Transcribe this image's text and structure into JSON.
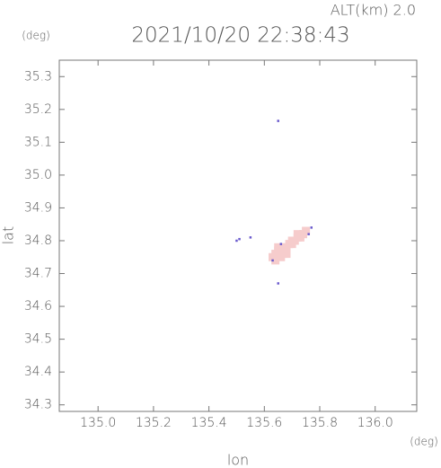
{
  "chart_data": {
    "type": "scatter",
    "title": "2021/10/20 22:38:43",
    "annotation": "ALT(km) 2.0",
    "x_label": "lon",
    "y_label": "lat",
    "x_unit": "(deg)",
    "y_unit": "(deg)",
    "xlim": [
      134.86,
      136.15
    ],
    "ylim": [
      34.28,
      35.35
    ],
    "xticks": [
      {
        "value": 135.0,
        "label": "135.0"
      },
      135.2,
      135.4,
      135.6,
      135.8,
      {
        "value": 136.0,
        "label": "136.0"
      }
    ],
    "yticks": [
      35.3,
      35.2,
      35.1,
      {
        "value": 35.0,
        "label": "35.0"
      },
      34.9,
      34.8,
      34.7,
      34.6,
      34.5,
      34.4,
      34.3
    ],
    "series": [
      {
        "color": "#f6cccc",
        "x": [
          135.63,
          135.64,
          135.65,
          135.66,
          135.67,
          135.68,
          135.69,
          135.7,
          135.71,
          135.72,
          135.73,
          135.74,
          135.75,
          135.64,
          135.66,
          135.68,
          135.65,
          135.67,
          135.7,
          135.72
        ],
        "y": [
          34.75,
          34.76,
          34.77,
          34.77,
          34.78,
          34.78,
          34.79,
          34.8,
          34.8,
          34.81,
          34.81,
          34.82,
          34.83,
          34.74,
          34.75,
          34.76,
          34.78,
          34.76,
          34.79,
          34.82
        ]
      },
      {
        "color": "#6a5acd",
        "x": [
          135.65,
          135.51,
          135.5,
          135.55,
          135.65,
          135.63,
          135.77,
          135.76,
          135.66
        ],
        "y": [
          35.165,
          34.805,
          34.8,
          34.81,
          34.67,
          34.74,
          34.84,
          34.82,
          34.79
        ]
      }
    ]
  }
}
